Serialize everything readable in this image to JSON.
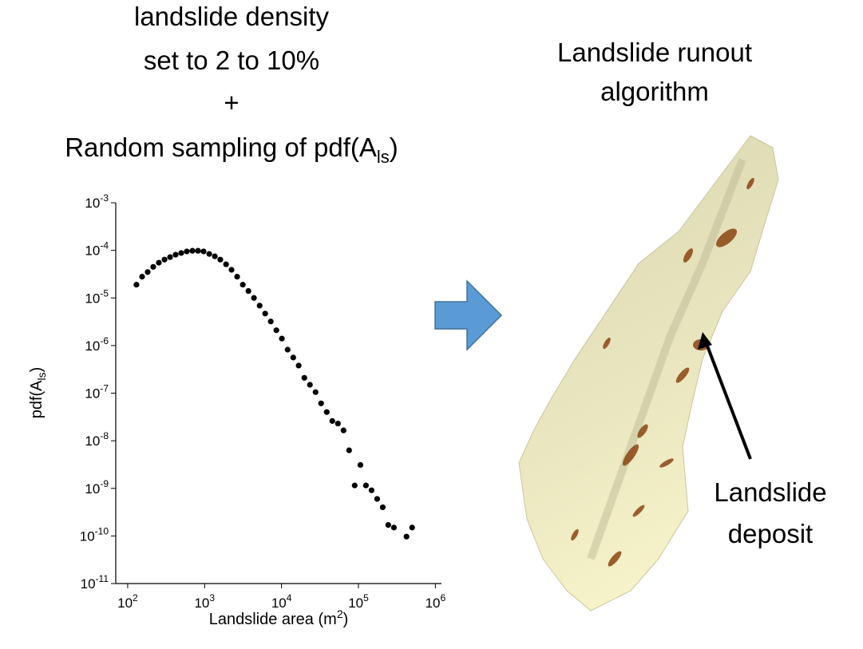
{
  "header": {
    "left_title": [
      "landslide density",
      "set to 2 to 10%",
      "+"
    ],
    "left_title_last": {
      "text": "Random sampling of pdf(A",
      "sub": "ls",
      "tail": ")"
    },
    "right_title": [
      "Landslide runout",
      "algorithm"
    ]
  },
  "annotation": [
    "Landslide",
    "deposit"
  ],
  "chart_data": {
    "type": "scatter",
    "x_label": {
      "text": "Landslide area (m",
      "sup": "2",
      "tail": ")"
    },
    "y_label": {
      "text": "pdf(A",
      "sub": "ls",
      "tail": ")"
    },
    "log_x": true,
    "log_y": true,
    "color": "#000000",
    "xlim": [
      70,
      1200000
    ],
    "ylim": [
      1e-11,
      0.001
    ],
    "xticks": [
      {
        "value": 100,
        "label": "10",
        "exponent": "2"
      },
      {
        "value": 1000,
        "label": "10",
        "exponent": "3"
      },
      {
        "value": 10000,
        "label": "10",
        "exponent": "4"
      },
      {
        "value": 100000,
        "label": "10",
        "exponent": "5"
      },
      {
        "value": 1000000,
        "label": "10",
        "exponent": "6"
      }
    ],
    "yticks": [
      {
        "value": 1e-11,
        "label": "10",
        "exponent": "-11"
      },
      {
        "value": 1e-10,
        "label": "10",
        "exponent": "-10"
      },
      {
        "value": 1e-09,
        "label": "10",
        "exponent": "-9"
      },
      {
        "value": 1e-08,
        "label": "10",
        "exponent": "-8"
      },
      {
        "value": 1e-07,
        "label": "10",
        "exponent": "-7"
      },
      {
        "value": 1e-06,
        "label": "10",
        "exponent": "-6"
      },
      {
        "value": 1e-05,
        "label": "10",
        "exponent": "-5"
      },
      {
        "value": 0.0001,
        "label": "10",
        "exponent": "-4"
      },
      {
        "value": 0.001,
        "label": "10",
        "exponent": "-3"
      }
    ],
    "x": [
      130,
      154,
      182,
      215,
      254,
      301,
      356,
      420,
      497,
      587,
      695,
      820,
      970,
      1150,
      1360,
      1600,
      1900,
      2240,
      2650,
      3140,
      3710,
      4380,
      5190,
      6130,
      7250,
      8570,
      10100,
      12000,
      14200,
      16700,
      19800,
      23400,
      27700,
      32700,
      38700,
      45700,
      54100,
      64000,
      75600,
      89400,
      106000,
      125000,
      148000,
      175000,
      207000,
      244000,
      289000,
      421000,
      498000
    ],
    "y": [
      1.9e-05,
      2.8e-05,
      3.5e-05,
      4.5e-05,
      5.5e-05,
      6.4e-05,
      7.2e-05,
      8.1e-05,
      8.8e-05,
      9.5e-05,
      9.8e-05,
      9.8e-05,
      9.5e-05,
      8.4e-05,
      7.5e-05,
      6.4e-05,
      5.1e-05,
      3.9e-05,
      2.8e-05,
      1.9e-05,
      1.4e-05,
      1e-05,
      6.9e-06,
      4.7e-06,
      3.2e-06,
      2.1e-06,
      1.4e-06,
      8.2e-07,
      5.6e-07,
      3.8e-07,
      2.1e-07,
      1.5e-07,
      1.05e-07,
      6.1e-08,
      4e-08,
      2.6e-08,
      2.3e-08,
      1.65e-08,
      6.3e-09,
      1.15e-09,
      3.1e-09,
      1.15e-09,
      9.1e-10,
      6e-10,
      4e-10,
      1.7e-10,
      1.5e-10,
      9.7e-11,
      1.5e-10
    ]
  }
}
